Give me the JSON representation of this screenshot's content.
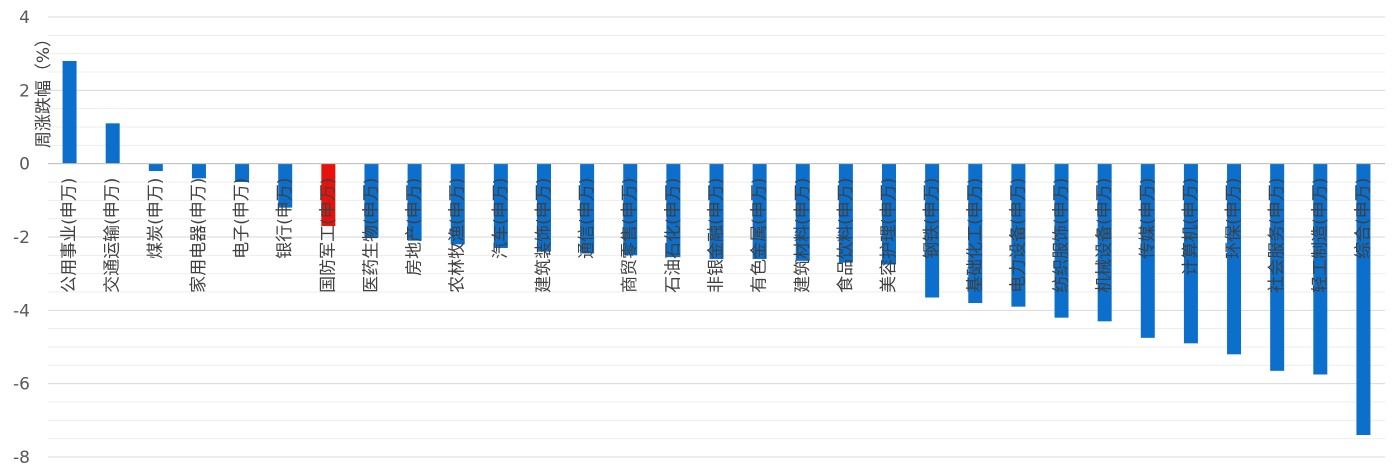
{
  "chart_data": {
    "type": "bar",
    "ylabel": "周涨跌幅（%）",
    "ylim": [
      -8,
      4
    ],
    "yticks": [
      4,
      2,
      0,
      -2,
      -4,
      -6,
      -8
    ],
    "grid": true,
    "categories": [
      "公用事业(申万)",
      "交通运输(申万)",
      "煤炭(申万)",
      "家用电器(申万)",
      "电子(申万)",
      "银行(申万)",
      "国防军工(申万)",
      "医药生物(申万)",
      "房地产(申万)",
      "农林牧渔(申万)",
      "汽车(申万)",
      "建筑装饰(申万)",
      "通信(申万)",
      "商贸零售(申万)",
      "石油石化(申万)",
      "非银金融(申万)",
      "有色金属(申万)",
      "建筑材料(申万)",
      "食品饮料(申万)",
      "美容护理(申万)",
      "钢铁(申万)",
      "基础化工(申万)",
      "电力设备(申万)",
      "纺织服饰(申万)",
      "机械设备(申万)",
      "传媒(申万)",
      "计算机(申万)",
      "环保(申万)",
      "社会服务(申万)",
      "轻工制造(申万)",
      "综合(申万)"
    ],
    "values": [
      2.8,
      1.1,
      -0.2,
      -0.4,
      -0.5,
      -1.2,
      -1.7,
      -2.0,
      -2.1,
      -2.2,
      -2.3,
      -2.4,
      -2.45,
      -2.5,
      -2.55,
      -2.6,
      -2.6,
      -2.65,
      -2.7,
      -2.75,
      -3.65,
      -3.8,
      -3.9,
      -4.2,
      -4.3,
      -4.75,
      -4.9,
      -5.2,
      -5.65,
      -5.75,
      -7.4
    ],
    "highlight_index": 6,
    "colors": {
      "bar": "#0B6FCB",
      "highlight": "#E8120C",
      "grid": "#D9D9D9",
      "minor_grid": "#EDEDED",
      "axis": "#BFBFBF"
    }
  }
}
